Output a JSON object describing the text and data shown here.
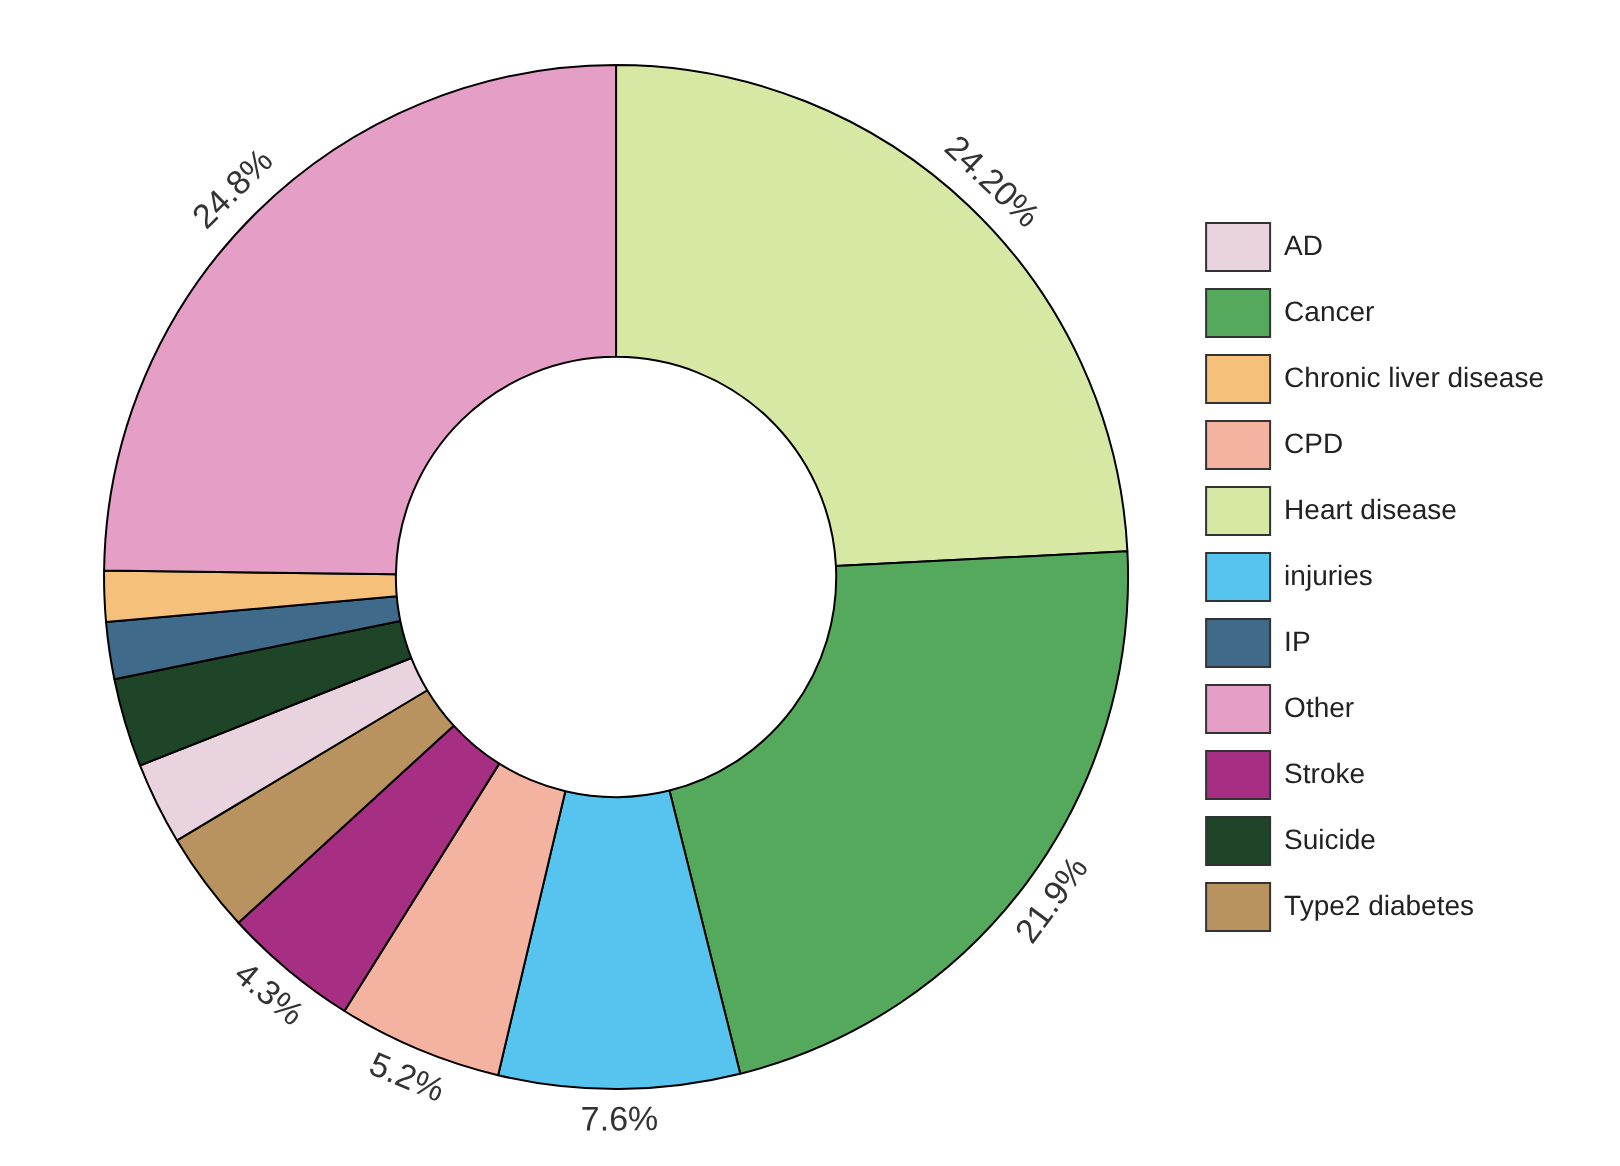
{
  "chart_data": {
    "type": "donut",
    "categories": [
      "Heart disease",
      "Cancer",
      "injuries",
      "CPD",
      "Stroke",
      "Type2 diabetes",
      "AD",
      "Suicide",
      "IP",
      "Chronic liver disease",
      "Other"
    ],
    "values": [
      24.2,
      21.9,
      7.6,
      5.2,
      4.3,
      3.2,
      2.6,
      2.8,
      1.8,
      1.6,
      24.8
    ],
    "colors": [
      "#d6e8a4",
      "#55a95c",
      "#56c4ef",
      "#f4b3a0",
      "#a62f84",
      "#b8925f",
      "#e8d3de",
      "#1f4529",
      "#3f6a8a",
      "#f4c07a",
      "#e59fc7"
    ],
    "value_labels": [
      "24.20%",
      "21.9%",
      "7.6%",
      "5.2%",
      "4.3%",
      null,
      null,
      null,
      null,
      null,
      "24.8%"
    ],
    "legend": "right"
  }
}
